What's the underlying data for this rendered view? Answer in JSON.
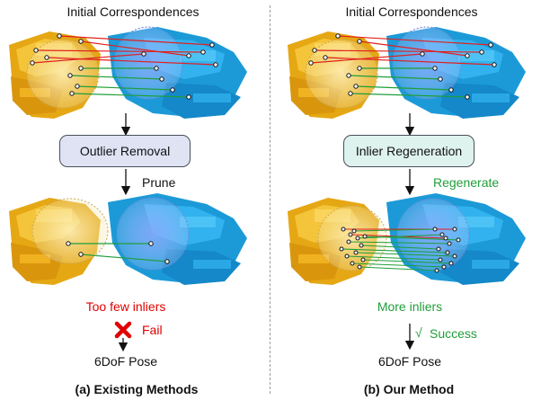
{
  "left": {
    "top_label": "Initial Correspondences",
    "process_box": "Outlier Removal",
    "process_action": "Prune",
    "result_text": "Too few inliers",
    "status_text": "Fail",
    "output_label": "6DoF Pose",
    "caption": "(a) Existing Methods"
  },
  "right": {
    "top_label": "Initial Correspondences",
    "process_box": "Inlier Regeneration",
    "process_action": "Regenerate",
    "result_text": "More inliers",
    "status_text": "Success",
    "status_mark": "√",
    "output_label": "6DoF Pose",
    "caption": "(b) Our Method"
  },
  "colors": {
    "outlier_line": "#e02020",
    "inlier_line": "#1f9e3a",
    "fail_text": "#e00000",
    "success_text": "#1f9e3a",
    "outlier_box_fill": "#dfe3f4",
    "inlier_box_fill": "#def2ee",
    "source_cloud": "#f2b81c",
    "target_cloud": "#1da6e2"
  }
}
